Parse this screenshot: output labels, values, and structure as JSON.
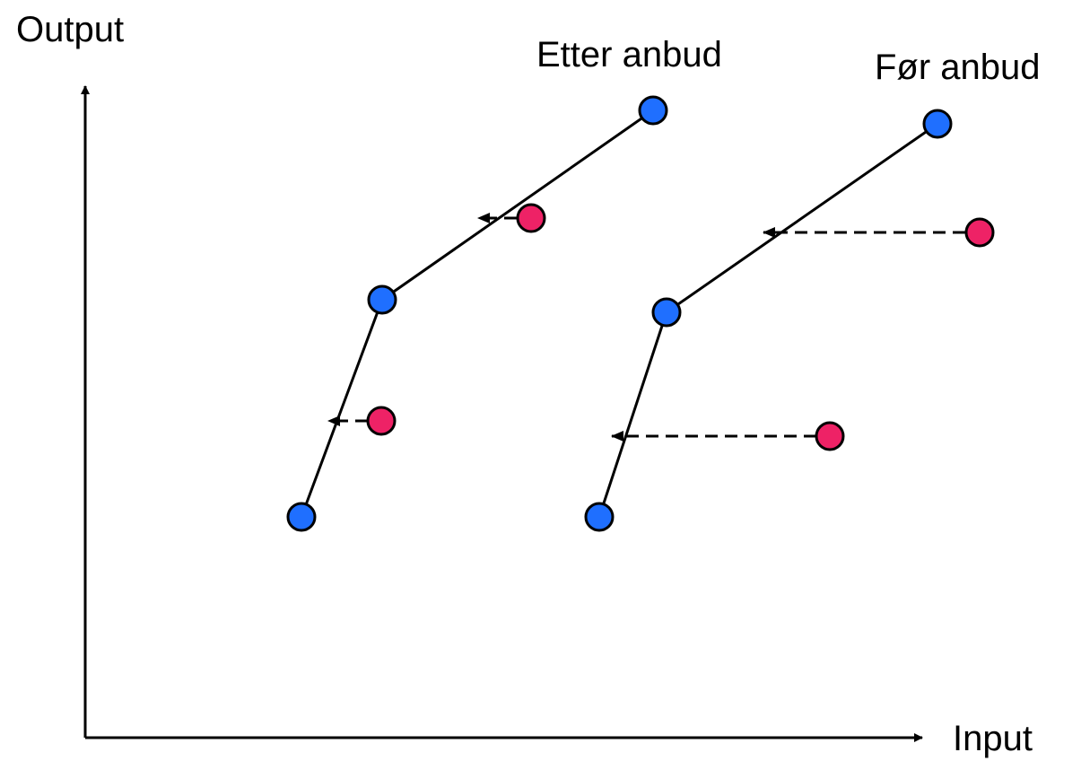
{
  "labels": {
    "y_axis": "Output",
    "x_axis": "Input",
    "after": "Etter anbud",
    "before": "Før anbud"
  },
  "colors": {
    "efficient": "#1f6fff",
    "inefficient": "#ee2266",
    "line": "#000000"
  }
}
